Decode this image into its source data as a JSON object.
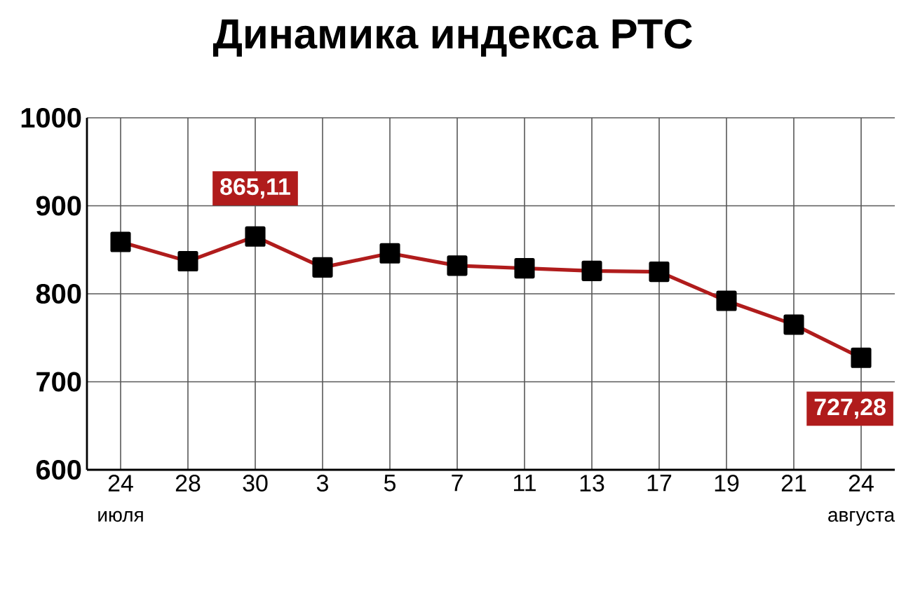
{
  "chart_data": {
    "type": "line",
    "title": "Динамика индекса РТС",
    "categories": [
      "24",
      "28",
      "30",
      "3",
      "5",
      "7",
      "11",
      "13",
      "17",
      "19",
      "21",
      "24"
    ],
    "series": [
      {
        "color": "#b01c1c",
        "values": [
          859,
          837,
          865.11,
          830,
          846,
          832,
          829,
          826,
          825,
          792,
          765,
          727.28
        ],
        "value_labels": [
          null,
          null,
          "865,11",
          null,
          null,
          null,
          null,
          null,
          null,
          null,
          null,
          "727,28"
        ]
      }
    ],
    "annotations": [
      "июля",
      "августа"
    ],
    "ylim": [
      600,
      1000
    ],
    "yticks": [
      600,
      700,
      800,
      900,
      1000
    ],
    "grid": true,
    "marker": "square",
    "line_style": "solid"
  }
}
